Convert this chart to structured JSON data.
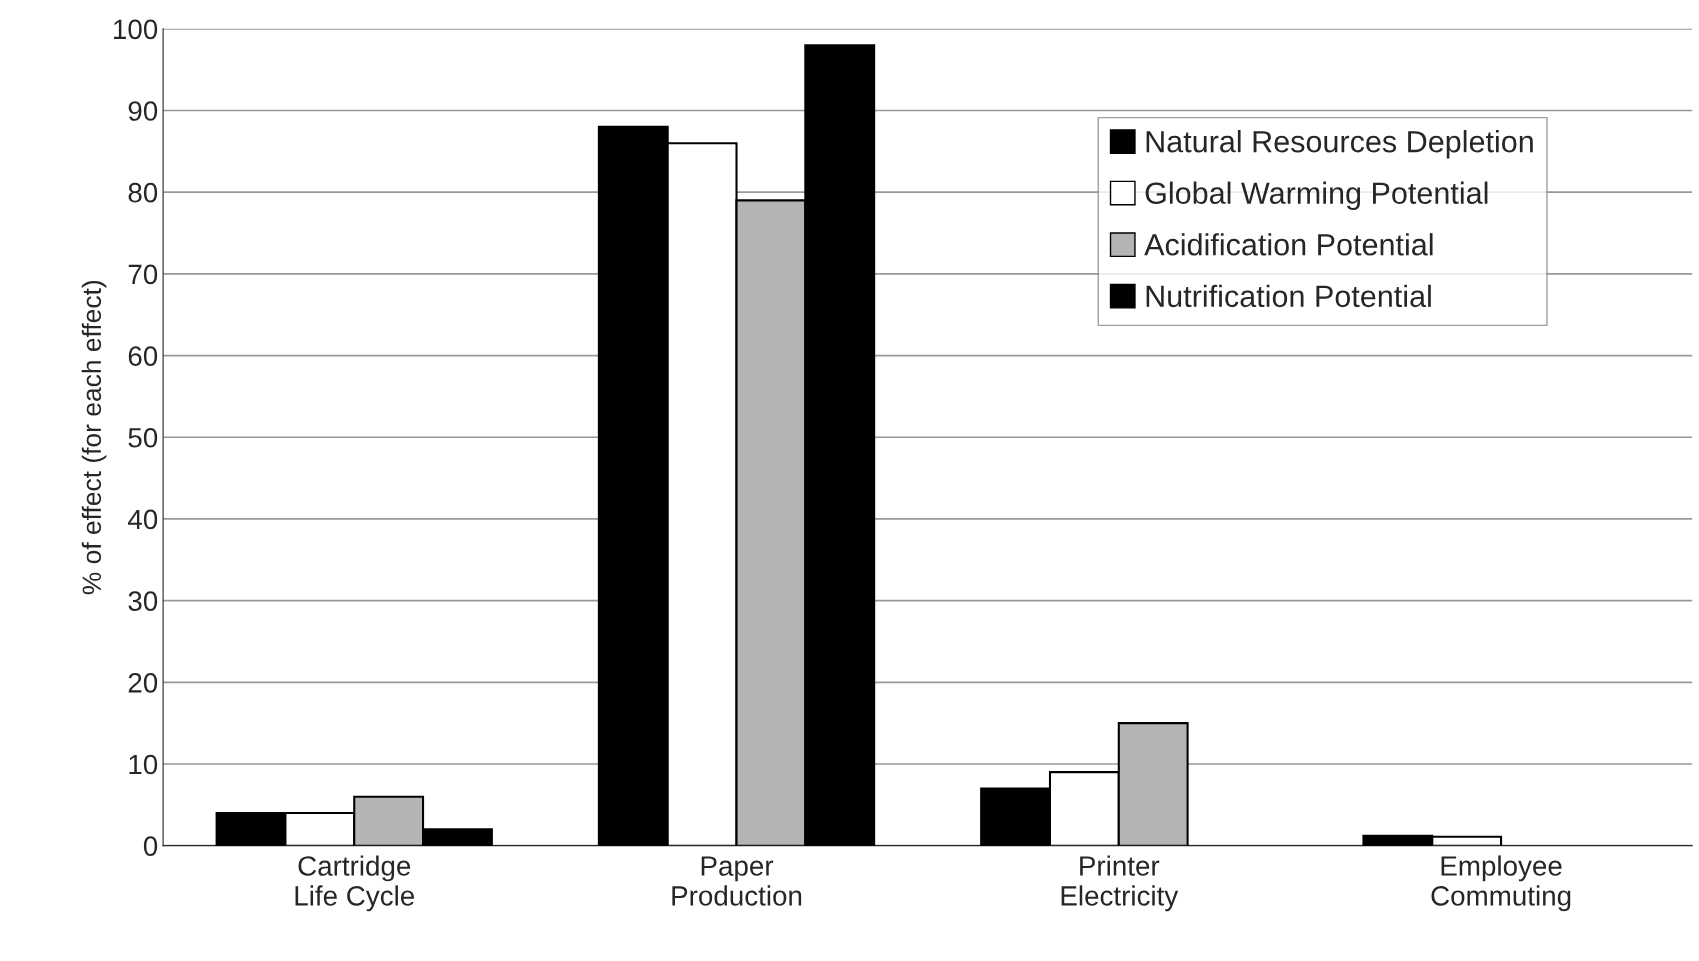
{
  "chart_data": {
    "type": "bar",
    "ylabel": "% of effect (for each effect)",
    "categories": [
      "Cartridge\nLife Cycle",
      "Paper\nProduction",
      "Printer\nElectricity",
      "Employee\nCommuting"
    ],
    "series": [
      {
        "name": "Natural Resources Depletion",
        "color": "#000000",
        "values": [
          4,
          88,
          7,
          1.2
        ]
      },
      {
        "name": "Global Warming Potential",
        "color": "#ffffff",
        "values": [
          4,
          86,
          9,
          1.1
        ]
      },
      {
        "name": "Acidification Potential",
        "color": "#b4b4b4",
        "values": [
          6,
          79,
          15,
          null
        ]
      },
      {
        "name": "Nutrification Potential",
        "color": "#000000",
        "values": [
          2,
          98,
          null,
          null
        ]
      }
    ],
    "ylim": [
      0,
      100
    ],
    "yticks": [
      0,
      10,
      20,
      30,
      40,
      50,
      60,
      70,
      80,
      90,
      100
    ],
    "grid": "y",
    "legend": "top right"
  }
}
